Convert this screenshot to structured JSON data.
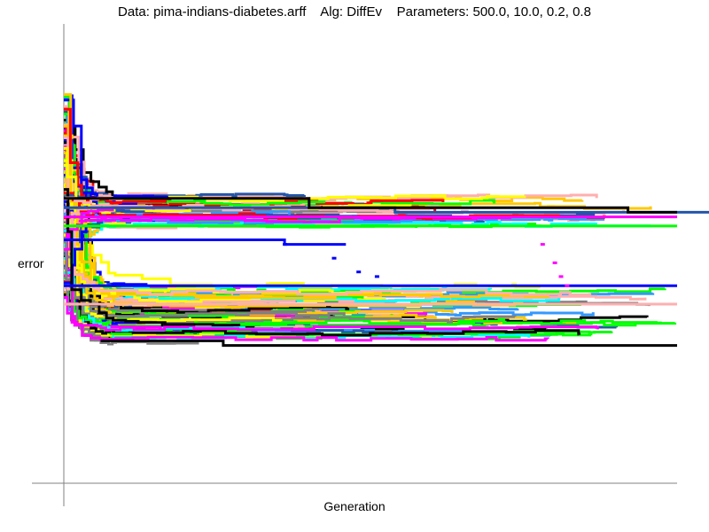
{
  "chart_data": {
    "type": "line",
    "title": "Data: pima-indians-diabetes.arff    Alg: DiffEv    Parameters: 500.0, 10.0, 0.2, 0.8",
    "xlabel": "Generation",
    "ylabel": "error",
    "xlim": [
      0,
      500
    ],
    "ylim": [
      0,
      1
    ],
    "tick_labels": "none",
    "grid": false,
    "legend": "none",
    "series_count": 200,
    "colors": [
      "#0000ff",
      "#ff00ff",
      "#ff0000",
      "#00ff00",
      "#00ffff",
      "#ffc800",
      "#ffafaf",
      "#808080",
      "#000000",
      "#ffff00",
      "#3399ff",
      "#2255aa"
    ],
    "persistent_series": [
      {
        "color": "#2255aa",
        "points": [
          [
            0,
            0.6
          ],
          [
            270,
            0.6
          ],
          [
            270,
            0.59
          ],
          [
            540,
            0.59
          ],
          [
            540,
            0.59
          ]
        ]
      },
      {
        "color": "#000000",
        "points": [
          [
            0,
            0.62
          ],
          [
            200,
            0.62
          ],
          [
            200,
            0.6
          ],
          [
            460,
            0.6
          ],
          [
            460,
            0.59
          ],
          [
            500,
            0.59
          ]
        ]
      },
      {
        "color": "#ff00ff",
        "points": [
          [
            0,
            0.58
          ],
          [
            500,
            0.58
          ]
        ]
      },
      {
        "color": "#00ff00",
        "points": [
          [
            0,
            0.56
          ],
          [
            500,
            0.56
          ]
        ]
      },
      {
        "color": "#0000ff",
        "points": [
          [
            0,
            0.53
          ],
          [
            180,
            0.53
          ],
          [
            180,
            0.52
          ],
          [
            230,
            0.52
          ]
        ]
      },
      {
        "color": "#0000ff",
        "points": [
          [
            0,
            0.43
          ],
          [
            500,
            0.43
          ]
        ]
      },
      {
        "color": "#ffafaf",
        "points": [
          [
            0,
            0.39
          ],
          [
            500,
            0.39
          ]
        ]
      },
      {
        "color": "#000000",
        "points": [
          [
            30,
            0.31
          ],
          [
            130,
            0.31
          ],
          [
            130,
            0.3
          ],
          [
            500,
            0.3
          ]
        ]
      }
    ],
    "transit_series": [
      {
        "color": "#0000ff",
        "points": [
          [
            180,
            0.52
          ],
          [
            220,
            0.49
          ],
          [
            240,
            0.46
          ],
          [
            255,
            0.45
          ]
        ]
      },
      {
        "color": "#ff00ff",
        "points": [
          [
            390,
            0.52
          ],
          [
            400,
            0.48
          ],
          [
            405,
            0.45
          ],
          [
            410,
            0.43
          ]
        ]
      }
    ]
  }
}
